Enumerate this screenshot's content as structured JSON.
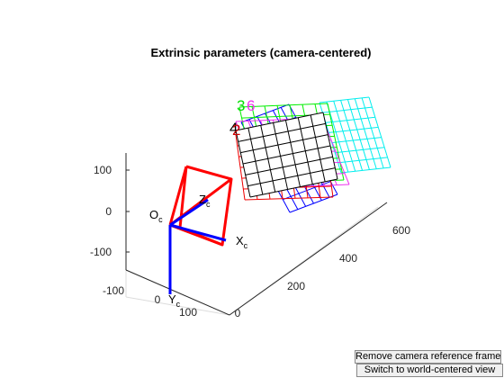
{
  "figure": {
    "title": "Extrinsic parameters (camera-centered)"
  },
  "axes": {
    "vertical_ticks": [
      "100",
      "0",
      "-100"
    ],
    "left_ticks": [
      "-100",
      "0",
      "100"
    ],
    "right_ticks": [
      "0",
      "200",
      "400",
      "600"
    ]
  },
  "camera": {
    "origin_label": "O",
    "origin_sub": "c",
    "x_label": "X",
    "x_sub": "c",
    "y_label": "Y",
    "y_sub": "c",
    "z_label": "Z",
    "z_sub": "c",
    "frustum_color": "#ff0000",
    "axis_color": "#0000ff"
  },
  "board_labels": [
    {
      "text": "3",
      "color": "#00dd00"
    },
    {
      "text": "6",
      "color": "#ee33ee"
    },
    {
      "text": "4",
      "color": "#000000"
    },
    {
      "text": "2",
      "color": "#cc0000"
    }
  ],
  "boards": [
    {
      "name": "board-cyan",
      "color": "#00eeee"
    },
    {
      "name": "board-blue",
      "color": "#0000ff"
    },
    {
      "name": "board-green",
      "color": "#00ee00"
    },
    {
      "name": "board-magenta",
      "color": "#ee33ee"
    },
    {
      "name": "board-red",
      "color": "#ee0000"
    },
    {
      "name": "board-black",
      "color": "#000000"
    }
  ],
  "buttons": {
    "remove_label": "Remove camera reference frame",
    "switch_label": "Switch to world-centered view"
  }
}
